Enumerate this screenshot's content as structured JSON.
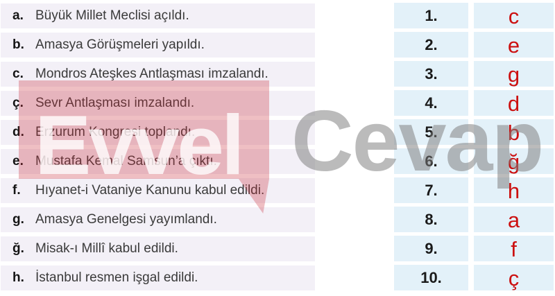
{
  "exercise": {
    "events": [
      {
        "label": "a.",
        "text": "Büyük Millet Meclisi açıldı."
      },
      {
        "label": "b.",
        "text": "Amasya Görüşmeleri yapıldı."
      },
      {
        "label": "c.",
        "text": "Mondros Ateşkes Antlaşması imzalandı."
      },
      {
        "label": "ç.",
        "text": "Sevr Antlaşması imzalandı."
      },
      {
        "label": "d.",
        "text": "Erzurum Kongresi toplandı."
      },
      {
        "label": "e.",
        "text": "Mustafa Kemal Samsun’a çıktı."
      },
      {
        "label": "f.",
        "text": "Hıyanet-i Vataniye Kanunu kabul edildi."
      },
      {
        "label": "g.",
        "text": "Amasya Genelgesi yayımlandı."
      },
      {
        "label": "ğ.",
        "text": "Misak-ı Millî kabul edildi."
      },
      {
        "label": "h.",
        "text": "İstanbul resmen işgal edildi."
      }
    ],
    "answers": [
      {
        "number": "1.",
        "letter": "c"
      },
      {
        "number": "2.",
        "letter": "e"
      },
      {
        "number": "3.",
        "letter": "g"
      },
      {
        "number": "4.",
        "letter": "d"
      },
      {
        "number": "5.",
        "letter": "b"
      },
      {
        "number": "6.",
        "letter": "ğ"
      },
      {
        "number": "7.",
        "letter": "h"
      },
      {
        "number": "8.",
        "letter": "a"
      },
      {
        "number": "9.",
        "letter": "f"
      },
      {
        "number": "10.",
        "letter": "ç"
      }
    ]
  },
  "watermark": {
    "primary": "Evvel",
    "secondary": "Cevap"
  },
  "colors": {
    "event_row_bg": "#f3f0f7",
    "answer_box_bg": "#e3f1f9",
    "answer_letter": "#cc1010",
    "number_text": "#1a1a1a",
    "watermark_red": "rgba(201,44,57,0.30)",
    "watermark_gray": "rgba(125,125,125,0.52)"
  }
}
